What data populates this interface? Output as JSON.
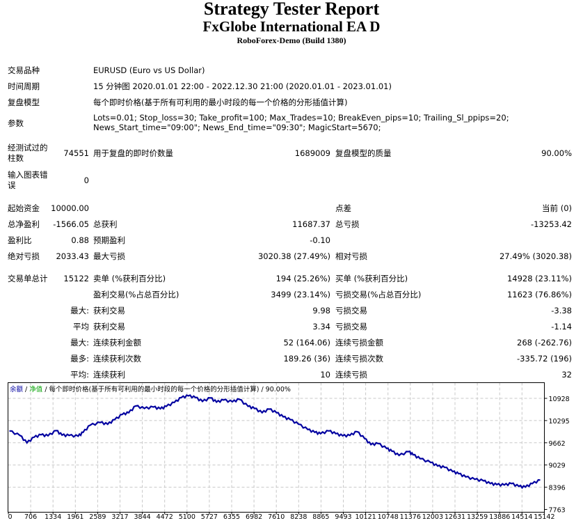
{
  "header": {
    "title": "Strategy Tester Report",
    "expert": "FxGlobe International EA D",
    "server": "RoboForex-Demo (Build 1380)"
  },
  "info": {
    "symbol_label": "交易品种",
    "symbol_value": "EURUSD (Euro vs US Dollar)",
    "period_label": "时间周期",
    "period_value": "15 分钟图 2020.01.01 22:00 - 2022.12.30 21:00 (2020.01.01 - 2023.01.01)",
    "model_label": "复盘模型",
    "model_value": "每个即时价格(基于所有可利用的最小时段的每一个价格的分形插值计算)",
    "params_label": "参数",
    "params_line1": "Lots=0.01; Stop_loss=30; Take_profit=100; Max_Trades=10; BreakEven_pips=10; Trailing_Sl_ppips=20;",
    "params_line2": "News_Start_time=\"09:00\"; News_End_time=\"09:30\"; MagicStart=5670;"
  },
  "bars": {
    "bars_label": "经测试过的柱数",
    "bars_value": "74551",
    "ticks_label": "用于复盘的即时价数量",
    "ticks_value": "1689009",
    "quality_label": "复盘模型的质量",
    "quality_value": "90.00%",
    "errors_label": "输入图表错误",
    "errors_value": "0"
  },
  "stats": {
    "deposit_label": "起始资金",
    "deposit_value": "10000.00",
    "spread_label": "点差",
    "spread_value": "当前 (0)",
    "net_label": "总净盈利",
    "net_value": "-1566.05",
    "gross_profit_label": "总获利",
    "gross_profit_value": "11687.37",
    "gross_loss_label": "总亏损",
    "gross_loss_value": "-13253.42",
    "pf_label": "盈利比",
    "pf_value": "0.88",
    "expected_label": "预期盈利",
    "expected_value": "-0.10",
    "abs_dd_label": "绝对亏损",
    "abs_dd_value": "2033.43",
    "max_dd_label": "最大亏损",
    "max_dd_value": "3020.38 (27.49%)",
    "rel_dd_label": "相对亏损",
    "rel_dd_value": "27.49% (3020.38)",
    "total_label": "交易单总计",
    "total_value": "15122",
    "short_label": "卖单 (%获利百分比)",
    "short_value": "194 (25.26%)",
    "long_label": "买单 (%获利百分比)",
    "long_value": "14928 (23.11%)",
    "profit_trades_label": "盈利交易(%占总百分比)",
    "profit_trades_value": "3499 (23.14%)",
    "loss_trades_label": "亏损交易(%占总百分比)",
    "loss_trades_value": "11623 (76.86%)",
    "rows": [
      {
        "prefix": "最大:",
        "l1": "获利交易",
        "v1": "9.98",
        "l2": "亏损交易",
        "v2": "-3.38"
      },
      {
        "prefix": "平均",
        "l1": "获利交易",
        "v1": "3.34",
        "l2": "亏损交易",
        "v2": "-1.14"
      },
      {
        "prefix": "最大:",
        "l1": "连续获利金额",
        "v1": "52 (164.06)",
        "l2": "连续亏损金额",
        "v2": "268 (-262.76)"
      },
      {
        "prefix": "最多:",
        "l1": "连续获利次数",
        "v1": "189.26 (36)",
        "l2": "连续亏损次数",
        "v2": "-335.72 (196)"
      },
      {
        "prefix": "平均:",
        "l1": "连续获利",
        "v1": "10",
        "l2": "连续亏损",
        "v2": "32"
      }
    ]
  },
  "chart_data": {
    "type": "line",
    "title": "余额 / 净值 / 每个即时价格(基于所有可利用的最小时段的每一个价格的分形插值计算) / 90.00%",
    "legend": [
      {
        "name": "余额",
        "color": "#0000a0"
      },
      {
        "name": "净值",
        "color": "#00a000"
      }
    ],
    "legend_rest": "/ 每个即时价格(基于所有可利用的最小时段的每一个价格的分形插值计算) / 90.00%",
    "xlabel": "",
    "ylabel": "",
    "x_ticks": [
      "0",
      "706",
      "1334",
      "1961",
      "2589",
      "3217",
      "3844",
      "4472",
      "5100",
      "5727",
      "6355",
      "6982",
      "7610",
      "8238",
      "8865",
      "9493",
      "10121",
      "10748",
      "11376",
      "12003",
      "12631",
      "13259",
      "13886",
      "14514",
      "15142"
    ],
    "y_ticks": [
      "10928",
      "10295",
      "9662",
      "9029",
      "8396",
      "7763"
    ],
    "ylim": [
      7763,
      11100
    ],
    "xlim": [
      0,
      15122
    ],
    "grid": true,
    "series": [
      {
        "name": "余额",
        "color": "#0000a0",
        "x": [
          0,
          300,
          500,
          706,
          900,
          1100,
          1334,
          1500,
          1700,
          1961,
          2100,
          2300,
          2589,
          2800,
          3000,
          3217,
          3400,
          3600,
          3844,
          4100,
          4300,
          4472,
          4700,
          4900,
          5100,
          5300,
          5500,
          5727,
          5900,
          6100,
          6355,
          6550,
          6800,
          6982,
          7200,
          7400,
          7610,
          7800,
          8000,
          8238,
          8500,
          8700,
          8865,
          9100,
          9300,
          9493,
          9700,
          9900,
          10121,
          10300,
          10500,
          10748,
          10900,
          11100,
          11376,
          11500,
          11700,
          12003,
          12200,
          12400,
          12631,
          12800,
          13000,
          13259,
          13500,
          13700,
          13886,
          14100,
          14300,
          14514,
          14700,
          14900,
          15122
        ],
        "values": [
          10000,
          9870,
          9660,
          9820,
          9890,
          9860,
          10010,
          9880,
          9870,
          9850,
          9960,
          10160,
          10240,
          10190,
          10320,
          10470,
          10520,
          10710,
          10640,
          10680,
          10630,
          10700,
          10810,
          10950,
          11000,
          10950,
          10840,
          10940,
          10820,
          10880,
          10830,
          10900,
          10700,
          10640,
          10520,
          10620,
          10520,
          10400,
          10320,
          10190,
          10040,
          9960,
          9920,
          10000,
          9920,
          9860,
          9870,
          9980,
          9780,
          9610,
          9640,
          9500,
          9420,
          9300,
          9410,
          9320,
          9210,
          9100,
          9000,
          8960,
          8840,
          8780,
          8690,
          8620,
          8580,
          8500,
          8470,
          8460,
          8500,
          8420,
          8400,
          8500,
          8600
        ]
      }
    ]
  }
}
